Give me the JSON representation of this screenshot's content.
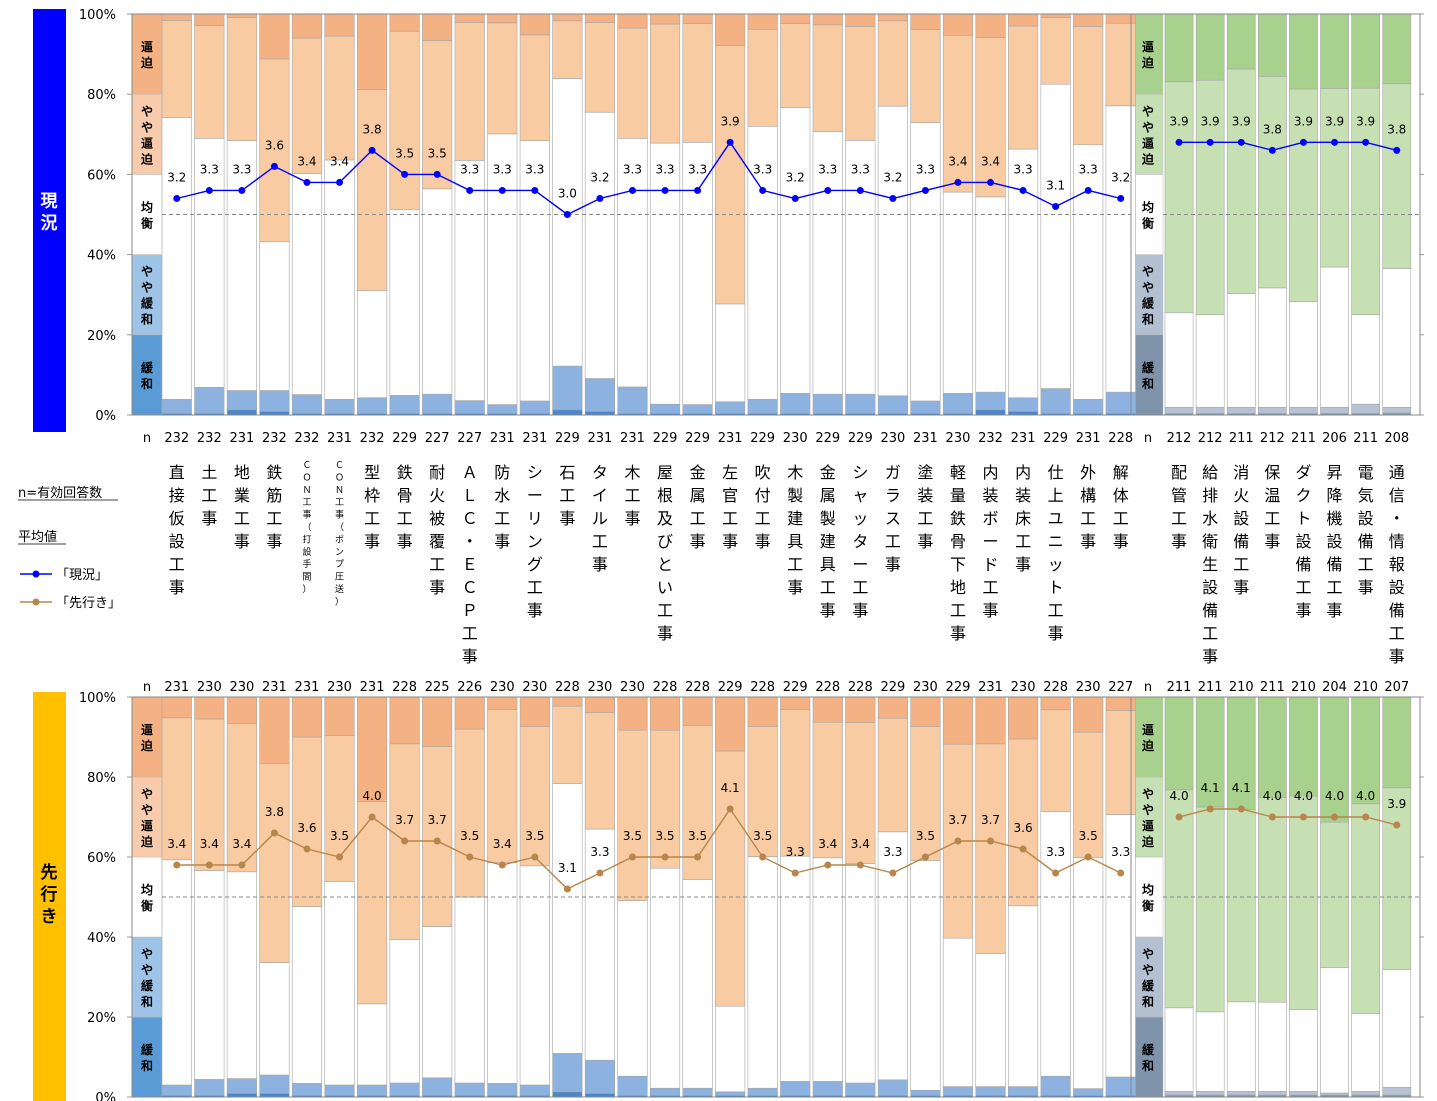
{
  "colors": {
    "current_panel": "#0000ff",
    "future_panel": "#ffc000",
    "line_current": "#0000ff",
    "line_future": "#b8864a",
    "construction": [
      "#4a86c8",
      "#8eb2e0",
      "#ffffff",
      "#f8cba3",
      "#f4b183"
    ],
    "equipment": [
      "#8096b0",
      "#b7c3d3",
      "#ffffff",
      "#c6e0b4",
      "#a9d18e"
    ],
    "label_band": [
      "#5b9bd5",
      "#9dc3e6",
      "#ffffff",
      "#f8cbad",
      "#f4b183"
    ],
    "label_band_eq": [
      "#7f93ab",
      "#b3c0d1",
      "#ffffff",
      "#c5e0b4",
      "#a9d18e"
    ]
  },
  "legend": {
    "n_label": "n=有効回答数",
    "avg_label": "平均値",
    "current_label": "「現況」",
    "future_label": "「先行き」",
    "n_short": "n"
  },
  "category_labels": {
    "tight": "逼迫",
    "slightly_tight": "やや逼迫",
    "balanced": "均衡",
    "slightly_eased": "やや緩和",
    "eased": "緩和"
  },
  "chart_data": [
    {
      "type": "bar",
      "stacked": true,
      "panel_label": "現況",
      "ylim": [
        0,
        100
      ],
      "yticks": [
        "0%",
        "20%",
        "40%",
        "60%",
        "80%",
        "100%"
      ],
      "reference_line": 50,
      "categories": [
        "直接仮設工事",
        "土工事",
        "地業工事",
        "鉄筋工事",
        "ＣＯＮ工事（打設手間）",
        "ＣＯＮ工事（ポンプ圧送）",
        "型枠工事",
        "鉄骨工事",
        "耐火被覆工事",
        "ＡＬＣ・ＥＣＰ工事",
        "防水工事",
        "シーリング工事",
        "石工事",
        "タイル工事",
        "木工事",
        "屋根及びとい工事",
        "金属工事",
        "左官工事",
        "吹付工事",
        "木製建具工事",
        "金属製建具工事",
        "シャッター工事",
        "ガラス工事",
        "塗装工事",
        "軽量鉄骨下地工事",
        "内装ボード工事",
        "内装床工事",
        "仕上ユニット工事",
        "外構工事",
        "解体工事",
        "配管工事",
        "給排水衛生設備工事",
        "消火設備工事",
        "保温工事",
        "ダクト設備工事",
        "昇降機設備工事",
        "電気設備工事",
        "通信・情報設備工事"
      ],
      "n": [
        232,
        232,
        231,
        232,
        232,
        231,
        232,
        229,
        227,
        227,
        231,
        231,
        229,
        231,
        231,
        229,
        229,
        231,
        229,
        230,
        229,
        229,
        230,
        231,
        230,
        232,
        231,
        229,
        231,
        228,
        212,
        212,
        211,
        212,
        211,
        206,
        211,
        208
      ],
      "average": [
        3.2,
        3.3,
        3.3,
        3.6,
        3.4,
        3.4,
        3.8,
        3.5,
        3.5,
        3.3,
        3.3,
        3.3,
        3.0,
        3.2,
        3.3,
        3.3,
        3.3,
        3.9,
        3.3,
        3.2,
        3.3,
        3.3,
        3.2,
        3.3,
        3.4,
        3.4,
        3.3,
        3.1,
        3.3,
        3.2,
        3.9,
        3.9,
        3.9,
        3.8,
        3.9,
        3.9,
        3.9,
        3.8
      ],
      "series": [
        {
          "name": "緩和",
          "values": [
            0.4,
            0.4,
            1.3,
            0.9,
            0.4,
            0.4,
            0.4,
            0.4,
            0.4,
            0.4,
            0.4,
            0.4,
            1.3,
            0.9,
            0.4,
            0.4,
            0.4,
            0.4,
            0.4,
            0.4,
            0.4,
            0.4,
            0.4,
            0.4,
            0.4,
            1.3,
            0.9,
            0.4,
            0.4,
            0.4,
            0.4,
            0.4,
            0.4,
            0.4,
            0.4,
            0.4,
            0.4,
            0.5
          ]
        },
        {
          "name": "やや緩和",
          "values": [
            3.5,
            6.5,
            4.8,
            5.2,
            4.7,
            3.5,
            3.9,
            4.5,
            4.8,
            3.2,
            2.2,
            3.1,
            10.9,
            8.2,
            6.6,
            2.3,
            2.2,
            2.9,
            3.5,
            5.0,
            4.8,
            4.8,
            4.4,
            3.1,
            5.0,
            4.4,
            3.4,
            6.2,
            3.5,
            5.3,
            1.5,
            1.5,
            1.5,
            1.5,
            1.5,
            1.5,
            2.3,
            1.4
          ]
        },
        {
          "name": "均衡",
          "values": [
            70.3,
            62.1,
            62.3,
            37.1,
            55.1,
            59.7,
            26.7,
            46.3,
            51.2,
            59.9,
            67.5,
            64.9,
            71.7,
            66.4,
            62.0,
            65.1,
            65.4,
            24.4,
            68.1,
            71.3,
            65.5,
            63.3,
            72.2,
            69.4,
            50.2,
            48.7,
            62.0,
            75.9,
            63.5,
            71.4,
            23.6,
            23.1,
            28.4,
            29.8,
            26.4,
            35.0,
            22.3,
            34.6
          ]
        },
        {
          "name": "やや逼迫",
          "values": [
            24.2,
            28.1,
            30.7,
            45.6,
            33.8,
            30.9,
            50.2,
            44.5,
            37.0,
            34.4,
            27.7,
            26.4,
            14.4,
            22.4,
            27.5,
            29.7,
            29.6,
            64.4,
            24.2,
            20.9,
            26.6,
            28.4,
            21.3,
            23.2,
            39.1,
            39.7,
            30.7,
            16.6,
            29.5,
            20.6,
            57.6,
            58.5,
            56.0,
            52.7,
            53.0,
            44.5,
            56.5,
            46.1
          ]
        },
        {
          "name": "逼迫",
          "values": [
            1.6,
            2.9,
            0.9,
            11.2,
            6.0,
            5.5,
            18.8,
            4.3,
            6.6,
            2.1,
            2.2,
            5.2,
            1.7,
            2.1,
            3.5,
            2.5,
            2.4,
            7.9,
            3.8,
            2.4,
            2.7,
            3.1,
            1.7,
            3.9,
            5.3,
            5.9,
            3.0,
            0.9,
            3.1,
            2.3,
            16.9,
            16.5,
            13.7,
            15.6,
            18.7,
            18.6,
            18.5,
            17.4
          ]
        }
      ]
    },
    {
      "type": "bar",
      "stacked": true,
      "panel_label": "先行き",
      "ylim": [
        0,
        100
      ],
      "yticks": [
        "0%",
        "20%",
        "40%",
        "60%",
        "80%",
        "100%"
      ],
      "reference_line": 50,
      "n": [
        231,
        230,
        230,
        231,
        231,
        230,
        231,
        228,
        225,
        226,
        230,
        230,
        228,
        230,
        230,
        228,
        228,
        229,
        228,
        229,
        228,
        228,
        229,
        230,
        229,
        231,
        230,
        228,
        230,
        227,
        211,
        211,
        210,
        211,
        210,
        204,
        210,
        207
      ],
      "average": [
        3.4,
        3.4,
        3.4,
        3.8,
        3.6,
        3.5,
        4.0,
        3.7,
        3.7,
        3.5,
        3.4,
        3.5,
        3.1,
        3.3,
        3.5,
        3.5,
        3.5,
        4.1,
        3.5,
        3.3,
        3.4,
        3.4,
        3.3,
        3.5,
        3.7,
        3.7,
        3.6,
        3.3,
        3.5,
        3.3,
        4.0,
        4.1,
        4.1,
        4.0,
        4.0,
        4.0,
        4.0,
        3.9
      ],
      "series": [
        {
          "name": "緩和",
          "values": [
            0.4,
            0.4,
            0.9,
            0.9,
            0.4,
            0.4,
            0.4,
            0.4,
            0.4,
            0.4,
            0.4,
            0.4,
            1.3,
            0.9,
            0.4,
            0.4,
            0.4,
            0.4,
            0.4,
            0.4,
            0.4,
            0.4,
            0.4,
            0.4,
            0.4,
            0.4,
            0.4,
            0.4,
            0.4,
            0.4,
            0.5,
            0.5,
            0.5,
            0.5,
            0.5,
            0.5,
            0.5,
            0.5
          ]
        },
        {
          "name": "やや緩和",
          "values": [
            2.6,
            4.0,
            3.7,
            4.6,
            3.0,
            2.6,
            2.6,
            3.1,
            4.4,
            3.1,
            3.0,
            2.6,
            9.6,
            8.3,
            4.8,
            1.8,
            1.8,
            0.9,
            1.8,
            3.5,
            3.5,
            3.1,
            3.9,
            1.3,
            2.2,
            2.2,
            2.2,
            4.8,
            1.7,
            4.6,
            0.9,
            0.9,
            0.9,
            0.9,
            0.9,
            0.5,
            0.9,
            1.9
          ]
        },
        {
          "name": "均衡",
          "values": [
            56.3,
            52.2,
            51.7,
            28.1,
            44.2,
            50.9,
            20.3,
            35.9,
            37.8,
            46.5,
            55.2,
            54.8,
            67.5,
            57.8,
            43.9,
            55.0,
            52.2,
            21.4,
            57.9,
            56.3,
            55.9,
            54.9,
            62.0,
            57.4,
            37.1,
            33.3,
            45.2,
            66.2,
            57.8,
            65.6,
            20.9,
            19.9,
            22.4,
            22.3,
            20.5,
            31.4,
            19.5,
            29.5
          ]
        },
        {
          "name": "やや逼迫",
          "values": [
            35.5,
            37.9,
            37.1,
            49.8,
            42.4,
            36.5,
            50.6,
            48.9,
            45.0,
            42.0,
            38.3,
            34.8,
            19.3,
            29.1,
            42.6,
            34.5,
            38.5,
            63.8,
            32.5,
            36.7,
            33.9,
            35.2,
            28.4,
            33.5,
            48.5,
            52.4,
            41.7,
            25.4,
            31.3,
            26.0,
            54.5,
            51.2,
            48.1,
            51.2,
            53.3,
            36.3,
            52.4,
            45.4
          ]
        },
        {
          "name": "逼迫",
          "values": [
            5.2,
            5.5,
            6.6,
            16.6,
            10.0,
            9.6,
            26.1,
            11.7,
            12.4,
            8.0,
            3.1,
            7.4,
            2.3,
            3.9,
            8.3,
            8.3,
            7.1,
            13.5,
            7.4,
            3.1,
            6.3,
            6.4,
            5.3,
            7.4,
            11.8,
            11.7,
            10.5,
            3.2,
            8.8,
            3.4,
            23.2,
            27.5,
            28.1,
            25.1,
            24.8,
            31.3,
            26.7,
            22.7
          ]
        }
      ]
    }
  ]
}
